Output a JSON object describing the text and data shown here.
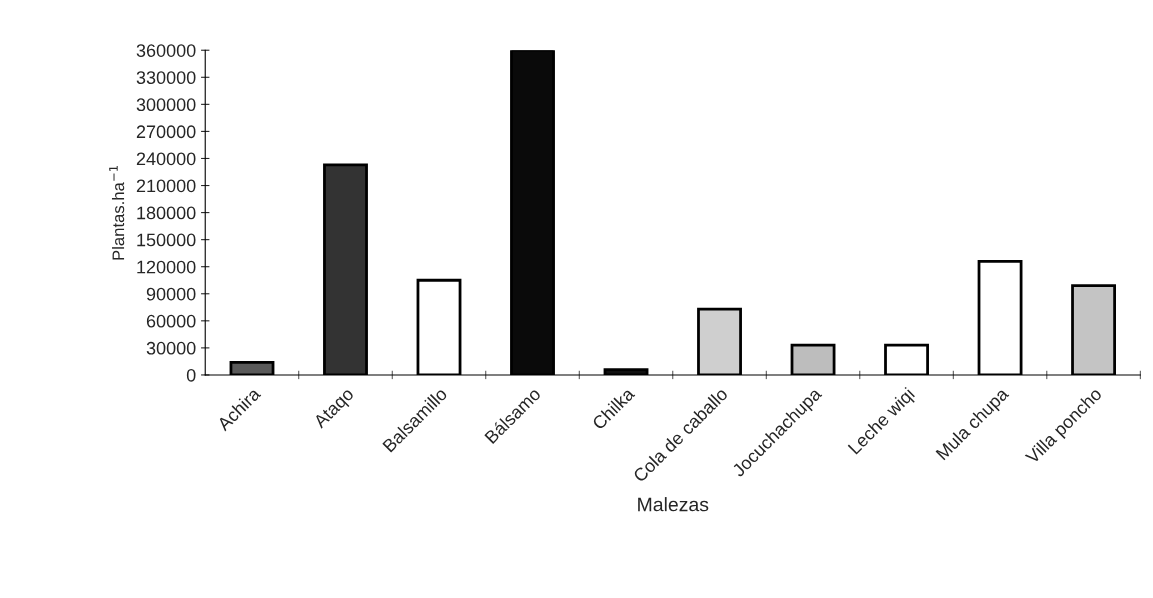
{
  "chart_data": {
    "type": "bar",
    "xlabel": "Malezas",
    "ylabel": "Plantas.ha$^{−1}$",
    "categories": [
      "Achira",
      "Ataqo",
      "Balsamillo",
      "Bálsamo",
      "Chilka",
      "Cola de caballo",
      "Jocuchachupa",
      "Leche wiqi",
      "Mula chupa",
      "Villa poncho"
    ],
    "values": [
      14000,
      233000,
      105000,
      360000,
      6000,
      73000,
      33000,
      33000,
      126000,
      99000
    ],
    "colors": [
      "#5a5a5a",
      "#333333",
      "#ffffff",
      "#0a0a0a",
      "#111111",
      "#cfcfcf",
      "#bdbdbd",
      "#ffffff",
      "#ffffff",
      "#c4c4c4"
    ],
    "ylim": [
      0,
      360000
    ],
    "yticks": [
      0,
      30000,
      60000,
      90000,
      120000,
      150000,
      180000,
      210000,
      240000,
      270000,
      300000,
      330000,
      360000
    ],
    "grid": false
  }
}
